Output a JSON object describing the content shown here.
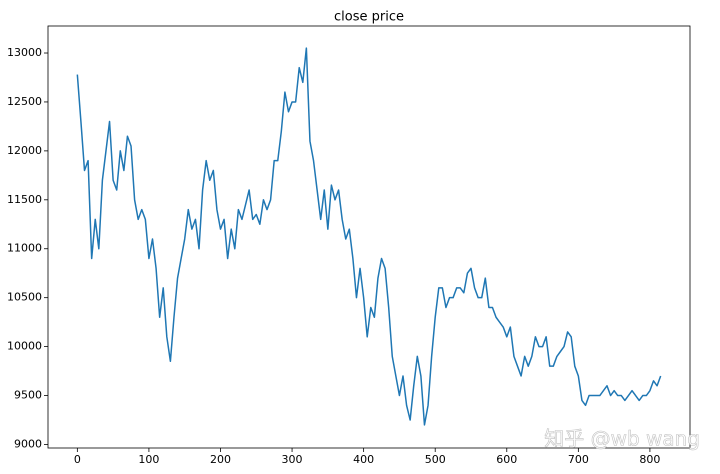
{
  "chart_data": {
    "type": "line",
    "title": "close price",
    "color": "#1f77b4",
    "x": [
      0,
      5,
      10,
      15,
      20,
      25,
      30,
      35,
      40,
      45,
      50,
      55,
      60,
      65,
      70,
      75,
      80,
      85,
      90,
      95,
      100,
      105,
      110,
      115,
      120,
      125,
      130,
      135,
      140,
      145,
      150,
      155,
      160,
      165,
      170,
      175,
      180,
      185,
      190,
      195,
      200,
      205,
      210,
      215,
      220,
      225,
      230,
      235,
      240,
      245,
      250,
      255,
      260,
      265,
      270,
      275,
      280,
      285,
      290,
      295,
      300,
      305,
      310,
      315,
      320,
      325,
      330,
      335,
      340,
      345,
      350,
      355,
      360,
      365,
      370,
      375,
      380,
      385,
      390,
      395,
      400,
      405,
      410,
      415,
      420,
      425,
      430,
      435,
      440,
      445,
      450,
      455,
      460,
      465,
      470,
      475,
      480,
      485,
      490,
      495,
      500,
      505,
      510,
      515,
      520,
      525,
      530,
      535,
      540,
      545,
      550,
      555,
      560,
      565,
      570,
      575,
      580,
      585,
      590,
      595,
      600,
      605,
      610,
      615,
      620,
      625,
      630,
      635,
      640,
      645,
      650,
      655,
      660,
      665,
      670,
      675,
      680,
      685,
      690,
      695,
      700,
      705,
      710,
      715,
      720,
      725,
      730,
      735,
      740,
      745,
      750,
      755,
      760,
      765,
      770,
      775,
      780,
      785,
      790,
      795,
      800,
      805,
      810,
      815
    ],
    "values": [
      12780,
      12300,
      11800,
      11900,
      10900,
      11300,
      11000,
      11700,
      12000,
      12300,
      11700,
      11600,
      12000,
      11800,
      12150,
      12050,
      11500,
      11300,
      11400,
      11300,
      10900,
      11100,
      10800,
      10300,
      10600,
      10100,
      9850,
      10300,
      10700,
      10900,
      11100,
      11400,
      11200,
      11300,
      11000,
      11600,
      11900,
      11700,
      11800,
      11400,
      11200,
      11300,
      10900,
      11200,
      11000,
      11400,
      11300,
      11450,
      11600,
      11300,
      11350,
      11250,
      11500,
      11400,
      11500,
      11900,
      11900,
      12200,
      12600,
      12400,
      12500,
      12500,
      12850,
      12700,
      13050,
      12100,
      11900,
      11600,
      11300,
      11600,
      11200,
      11650,
      11500,
      11600,
      11300,
      11100,
      11200,
      10900,
      10500,
      10800,
      10500,
      10100,
      10400,
      10300,
      10700,
      10900,
      10800,
      10400,
      9900,
      9700,
      9500,
      9700,
      9400,
      9250,
      9600,
      9900,
      9700,
      9200,
      9400,
      9900,
      10300,
      10600,
      10600,
      10400,
      10500,
      10500,
      10600,
      10600,
      10550,
      10750,
      10800,
      10600,
      10500,
      10500,
      10700,
      10400,
      10400,
      10300,
      10250,
      10200,
      10100,
      10200,
      9900,
      9800,
      9700,
      9900,
      9800,
      9900,
      10100,
      10000,
      10000,
      10100,
      9800,
      9800,
      9900,
      9950,
      10000,
      10150,
      10100,
      9800,
      9700,
      9450,
      9400,
      9500,
      9500,
      9500,
      9500,
      9550,
      9600,
      9500,
      9550,
      9500,
      9500,
      9450,
      9500,
      9550,
      9500,
      9450,
      9500,
      9500,
      9550,
      9650,
      9600,
      9700
    ],
    "xlim": [
      -41,
      856
    ],
    "ylim": [
      8964,
      13276
    ],
    "xticks": [
      0,
      100,
      200,
      300,
      400,
      500,
      600,
      700,
      800
    ],
    "yticks": [
      9000,
      9500,
      10000,
      10500,
      11000,
      11500,
      12000,
      12500,
      13000
    ]
  },
  "watermark": "知乎 @wb wang"
}
